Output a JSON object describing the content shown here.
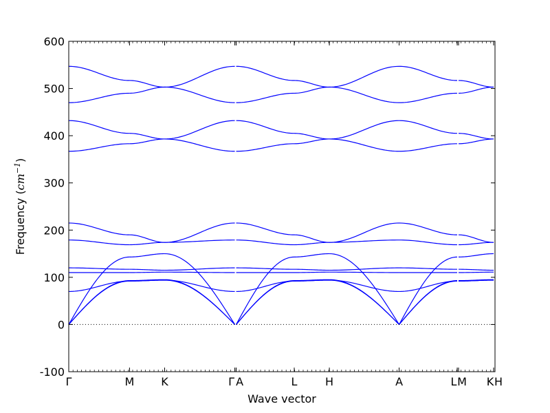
{
  "chart_data": {
    "type": "line",
    "xlabel": "Wave vector",
    "ylabel": "Frequency (",
    "ylabel_math": "cm",
    "ylabel_exp": "−1",
    "ylabel_close": ")",
    "ylim": [
      -100,
      600
    ],
    "yticks": [
      -100,
      0,
      100,
      200,
      300,
      400,
      500,
      600
    ],
    "grid": false,
    "line_color": "#0000ff",
    "zero_line_color": "#000000",
    "path": {
      "points": [
        0,
        1.35,
        2.13,
        3.69,
        3.72,
        5.01,
        5.79,
        7.34,
        8.63,
        8.66,
        9.44,
        9.47
      ],
      "labels": [
        "Γ",
        "M",
        "K",
        "Γ",
        "A",
        "L",
        "H",
        "A",
        "L",
        "M",
        "K",
        "H"
      ],
      "segments": [
        [
          0,
          1
        ],
        [
          1,
          2
        ],
        [
          2,
          3
        ],
        [
          4,
          5
        ],
        [
          5,
          6
        ],
        [
          6,
          7
        ],
        [
          7,
          8
        ],
        [
          9,
          10
        ],
        [
          11,
          11
        ]
      ]
    },
    "x_range": [
      0,
      9.47
    ],
    "bands": {
      "optical_high_pairs": [
        {
          "gamma": 547,
          "m": 517,
          "k": 503
        },
        {
          "gamma": 470,
          "m": 490,
          "k": 503
        },
        {
          "gamma": 432,
          "m": 405,
          "k": 393
        },
        {
          "gamma": 367,
          "m": 383,
          "k": 393
        }
      ],
      "mid_pairs": [
        {
          "gamma": 215,
          "m": 190,
          "k": 174
        },
        {
          "gamma": 179,
          "m": 169,
          "k": 174
        }
      ],
      "flat": [
        {
          "gamma": 120,
          "m": 117,
          "k": 115
        },
        {
          "gamma": 110,
          "m": 110,
          "k": 111
        }
      ],
      "acoustic": [
        {
          "gamma": 0,
          "m": 143,
          "k": 150
        },
        {
          "gamma": 0,
          "m": 93,
          "k": 95
        },
        {
          "gamma": 0,
          "m": 92,
          "k": 94
        },
        {
          "gamma": 70,
          "m": 92,
          "k": 94
        }
      ]
    }
  }
}
